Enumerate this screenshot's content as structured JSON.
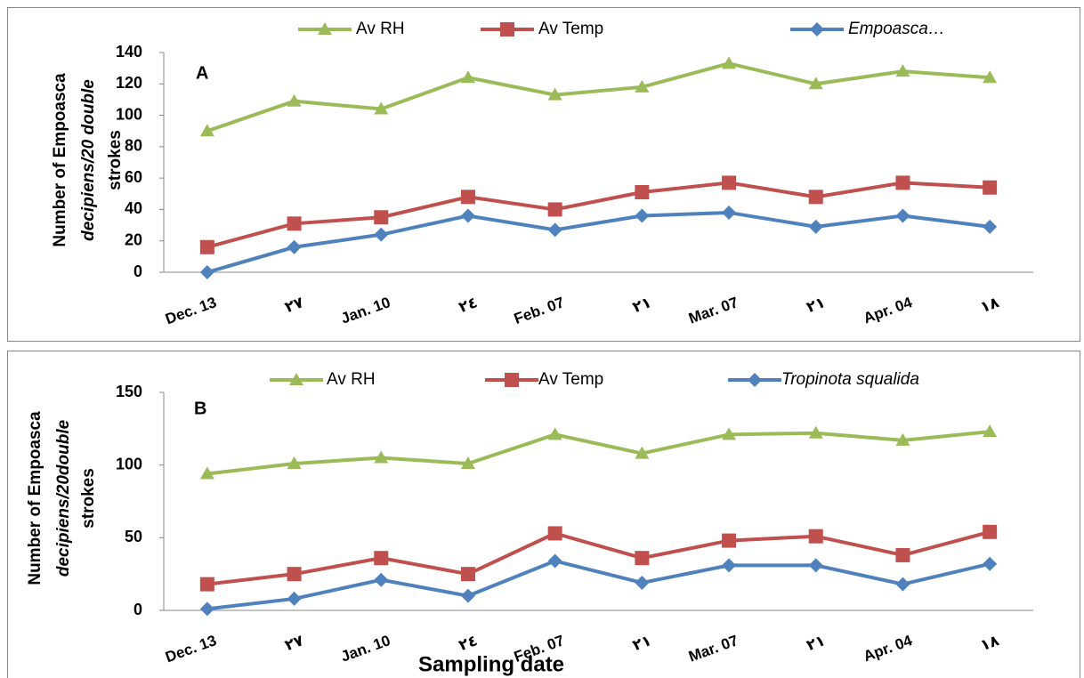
{
  "chart_data": [
    {
      "type": "line",
      "panel_label": "A",
      "y_label": [
        "Number of  Empoasca",
        "decipiens/20 double",
        "strokes"
      ],
      "categories": [
        "Dec. 13",
        "٢٧",
        "Jan. 10",
        "٢٤",
        "Feb. 07",
        "٢١",
        "Mar. 07",
        "٢١",
        "Apr. 04",
        "١٨"
      ],
      "ylim": [
        0,
        140
      ],
      "yticks": [
        0,
        20,
        40,
        60,
        80,
        100,
        120,
        140
      ],
      "series": [
        {
          "name": "Av RH",
          "color": "#9bbb59",
          "marker": "triangle",
          "values": [
            90,
            109,
            104,
            124,
            113,
            118,
            133,
            120,
            128,
            124
          ]
        },
        {
          "name": "Av Temp",
          "color": "#c0504d",
          "marker": "square",
          "values": [
            16,
            31,
            35,
            48,
            40,
            51,
            57,
            48,
            57,
            54
          ]
        },
        {
          "name": "Empoasca…",
          "color": "#4f81bd",
          "marker": "diamond",
          "italic": true,
          "values": [
            0,
            16,
            24,
            36,
            27,
            36,
            38,
            29,
            36,
            29
          ]
        }
      ]
    },
    {
      "type": "line",
      "panel_label": "B",
      "x_label": "Sampling date",
      "y_label": [
        "Number of Empoasca",
        "decipiens/20double",
        "strokes"
      ],
      "categories": [
        "Dec. 13",
        "٢٧",
        "Jan. 10",
        "٢٤",
        "Feb. 07",
        "٢١",
        "Mar. 07",
        "٢١",
        "Apr. 04",
        "١٨"
      ],
      "ylim": [
        0,
        150
      ],
      "yticks": [
        0,
        50,
        100,
        150
      ],
      "series": [
        {
          "name": "Av RH",
          "color": "#9bbb59",
          "marker": "triangle",
          "values": [
            94,
            101,
            105,
            101,
            121,
            108,
            121,
            122,
            117,
            123
          ]
        },
        {
          "name": "Av Temp",
          "color": "#c0504d",
          "marker": "square",
          "values": [
            18,
            25,
            36,
            25,
            53,
            36,
            48,
            51,
            38,
            54
          ]
        },
        {
          "name": "Tropinota squalida",
          "color": "#4f81bd",
          "marker": "diamond",
          "italic": true,
          "values": [
            1,
            8,
            21,
            10,
            34,
            19,
            31,
            31,
            18,
            32
          ]
        }
      ]
    }
  ]
}
